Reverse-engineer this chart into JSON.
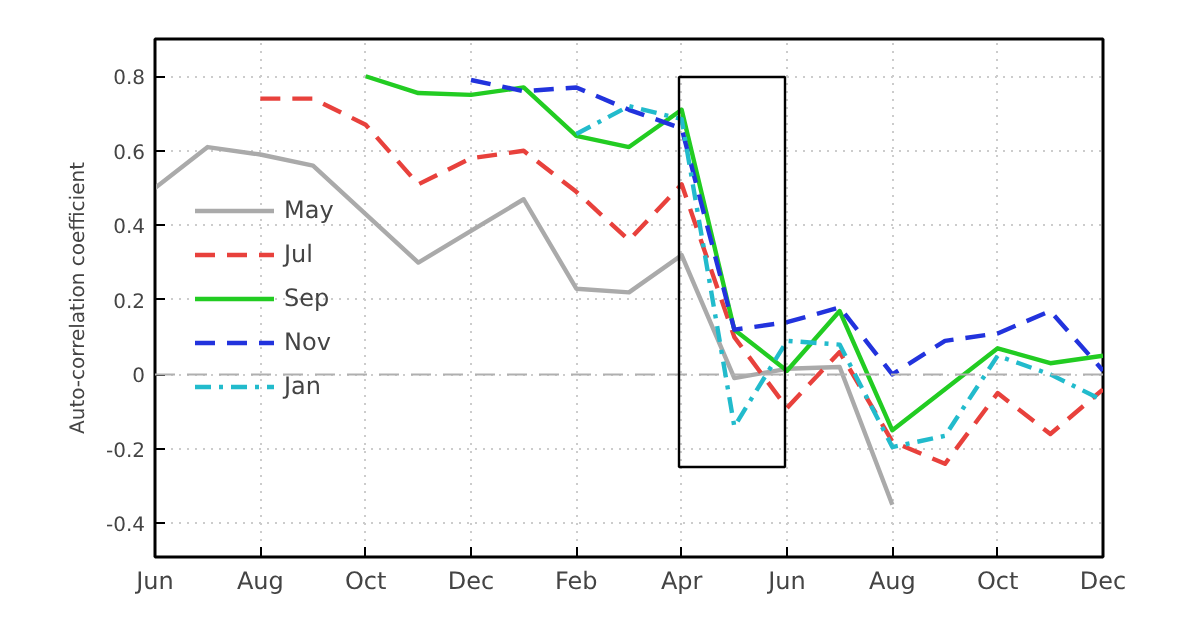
{
  "chart_data": {
    "type": "line",
    "ylabel": "Auto-correlation coefficient",
    "categories": [
      "Jun",
      null,
      "Aug",
      null,
      "Oct",
      null,
      "Dec",
      null,
      "Feb",
      null,
      "Apr",
      null,
      "Jun",
      null,
      "Aug",
      null,
      "Oct",
      null,
      "Dec"
    ],
    "series": [
      {
        "name": "May",
        "color": "#aaaaaa",
        "line_style": "solid",
        "values": [
          0.5,
          0.61,
          0.59,
          0.56,
          0.43,
          0.3,
          0.385,
          0.47,
          0.23,
          0.22,
          0.32,
          -0.01,
          0.015,
          0.02,
          -0.35,
          null,
          null,
          null,
          null
        ]
      },
      {
        "name": "Jul",
        "color": "#e8413c",
        "line_style": "dashed",
        "values": [
          null,
          null,
          0.74,
          0.74,
          0.67,
          0.51,
          0.58,
          0.6,
          0.49,
          0.36,
          0.51,
          0.1,
          -0.09,
          0.06,
          -0.18,
          -0.24,
          -0.05,
          -0.16,
          -0.04
        ]
      },
      {
        "name": "Sep",
        "color": "#22cc22",
        "line_style": "solid",
        "values": [
          null,
          null,
          null,
          null,
          0.8,
          0.755,
          0.75,
          0.77,
          0.64,
          0.61,
          0.71,
          0.12,
          0.01,
          0.17,
          -0.15,
          -0.04,
          0.07,
          0.03,
          0.05
        ]
      },
      {
        "name": "Nov",
        "color": "#2233dd",
        "line_style": "dashed",
        "values": [
          null,
          null,
          null,
          null,
          null,
          null,
          0.79,
          0.76,
          0.77,
          0.71,
          0.66,
          0.12,
          0.14,
          0.18,
          0.0,
          0.09,
          0.11,
          0.17,
          0.01
        ]
      },
      {
        "name": "Jan",
        "color": "#22bbcc",
        "line_style": "dashdot",
        "values": [
          null,
          null,
          null,
          null,
          null,
          null,
          null,
          null,
          0.645,
          0.72,
          0.685,
          -0.14,
          0.09,
          0.08,
          -0.195,
          -0.165,
          0.05,
          0.0,
          -0.07
        ]
      }
    ],
    "ylim": [
      -0.49,
      0.9
    ],
    "yticks": [
      -0.4,
      -0.2,
      0,
      0.2,
      0.4,
      0.6,
      0.8
    ],
    "ref_lines": [
      {
        "axis": "y",
        "value": 0,
        "color": "#b0b0b0",
        "line_style": "dashed"
      }
    ],
    "grid": true,
    "legend": "left"
  }
}
